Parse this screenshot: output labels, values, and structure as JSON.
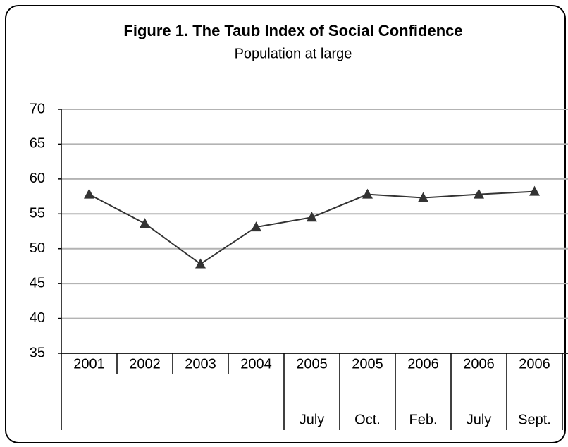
{
  "chart_data": {
    "type": "line",
    "title": "Figure 1. The Taub Index of Social Confidence",
    "subtitle": "Population at large",
    "categories": [
      "2001",
      "2002",
      "2003",
      "2004",
      "2005",
      "2005",
      "2006",
      "2006",
      "2006"
    ],
    "category_months": [
      null,
      null,
      null,
      null,
      "July",
      "Oct.",
      "Feb.",
      "July",
      "Sept."
    ],
    "values": [
      57.8,
      53.6,
      47.8,
      53.1,
      54.5,
      57.8,
      57.3,
      57.8,
      58.2
    ],
    "color": "#333333",
    "marker": "triangle",
    "ylim": [
      35,
      70
    ],
    "yticks": [
      35,
      40,
      45,
      50,
      55,
      60,
      65,
      70
    ],
    "grid": true
  }
}
